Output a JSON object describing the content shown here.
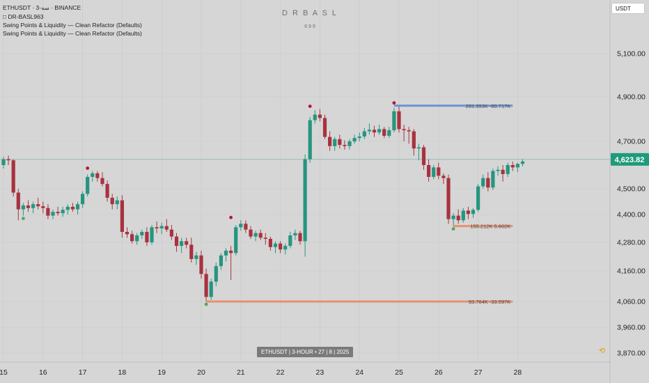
{
  "header": {
    "symbol_line": "ETHUSDT · 3-سه · BINANCE",
    "indicator_lines": [
      "□ DR-BASL963",
      "Swing Points & Liquidity — Clean Refactor (Defaults)",
      "Swing Points & Liquidity — Clean Refactor (Defaults)"
    ]
  },
  "watermark": {
    "title": "D R B A S L",
    "subtitle": "6 9 9"
  },
  "currency_button": "USDT",
  "bottom_label": "ETHUSDT  |  3-HOUR  •  27 | 8 | 2025",
  "logo_glyph": "⟲",
  "colors": {
    "bull": "#26957f",
    "bear": "#a8323f",
    "high_line": "#6b93d3",
    "low_line": "#e8906c",
    "price_label": "#1f9a7a",
    "swing_high": "#b8143a",
    "swing_low": "#58a65a",
    "grid": "#c9c9c9",
    "price_line": "#7fb4ac"
  },
  "chart_data": {
    "type": "candlestick",
    "x_ticks": [
      {
        "label": "15",
        "x": 0
      },
      {
        "label": "16",
        "x": 8
      },
      {
        "label": "17",
        "x": 16
      },
      {
        "label": "18",
        "x": 24
      },
      {
        "label": "19",
        "x": 32
      },
      {
        "label": "20",
        "x": 40
      },
      {
        "label": "21",
        "x": 48
      },
      {
        "label": "22",
        "x": 56
      },
      {
        "label": "23",
        "x": 64
      },
      {
        "label": "24",
        "x": 72
      },
      {
        "label": "25",
        "x": 80
      },
      {
        "label": "26",
        "x": 88
      },
      {
        "label": "27",
        "x": 96
      },
      {
        "label": "28",
        "x": 104
      }
    ],
    "y_ticks": [
      5100,
      4900,
      4700,
      4500,
      4400,
      4280,
      4160,
      4060,
      3960,
      3870
    ],
    "y_tick_labels": [
      "5,100.00",
      "4,900.00",
      "4,700.00",
      "4,500.00",
      "4,400.00",
      "4,280.00",
      "4,160.00",
      "4,060.00",
      "3,960.00",
      "3,870.00"
    ],
    "last_price": 4623.82,
    "last_price_label": "4,623.82",
    "candles": [
      {
        "o": 4600,
        "h": 4635,
        "l": 4585,
        "c": 4625
      },
      {
        "o": 4625,
        "h": 4640,
        "l": 4600,
        "c": 4620
      },
      {
        "o": 4620,
        "h": 4625,
        "l": 4470,
        "c": 4485
      },
      {
        "o": 4485,
        "h": 4500,
        "l": 4375,
        "c": 4420
      },
      {
        "o": 4420,
        "h": 4445,
        "l": 4395,
        "c": 4435
      },
      {
        "o": 4435,
        "h": 4455,
        "l": 4410,
        "c": 4425
      },
      {
        "o": 4425,
        "h": 4450,
        "l": 4405,
        "c": 4440
      },
      {
        "o": 4440,
        "h": 4465,
        "l": 4420,
        "c": 4432
      },
      {
        "o": 4432,
        "h": 4450,
        "l": 4405,
        "c": 4425
      },
      {
        "o": 4425,
        "h": 4440,
        "l": 4380,
        "c": 4395
      },
      {
        "o": 4395,
        "h": 4420,
        "l": 4380,
        "c": 4410
      },
      {
        "o": 4410,
        "h": 4430,
        "l": 4395,
        "c": 4405
      },
      {
        "o": 4405,
        "h": 4430,
        "l": 4390,
        "c": 4418
      },
      {
        "o": 4418,
        "h": 4440,
        "l": 4400,
        "c": 4430
      },
      {
        "o": 4430,
        "h": 4445,
        "l": 4410,
        "c": 4420
      },
      {
        "o": 4420,
        "h": 4450,
        "l": 4400,
        "c": 4440
      },
      {
        "o": 4440,
        "h": 4490,
        "l": 4425,
        "c": 4480
      },
      {
        "o": 4480,
        "h": 4560,
        "l": 4470,
        "c": 4550
      },
      {
        "o": 4550,
        "h": 4575,
        "l": 4530,
        "c": 4565
      },
      {
        "o": 4565,
        "h": 4575,
        "l": 4530,
        "c": 4545
      },
      {
        "o": 4545,
        "h": 4570,
        "l": 4510,
        "c": 4520
      },
      {
        "o": 4520,
        "h": 4535,
        "l": 4450,
        "c": 4465
      },
      {
        "o": 4465,
        "h": 4480,
        "l": 4420,
        "c": 4440
      },
      {
        "o": 4440,
        "h": 4470,
        "l": 4420,
        "c": 4455
      },
      {
        "o": 4455,
        "h": 4475,
        "l": 4300,
        "c": 4325
      },
      {
        "o": 4325,
        "h": 4345,
        "l": 4300,
        "c": 4315
      },
      {
        "o": 4315,
        "h": 4330,
        "l": 4275,
        "c": 4285
      },
      {
        "o": 4285,
        "h": 4320,
        "l": 4270,
        "c": 4310
      },
      {
        "o": 4310,
        "h": 4335,
        "l": 4295,
        "c": 4325
      },
      {
        "o": 4325,
        "h": 4345,
        "l": 4265,
        "c": 4280
      },
      {
        "o": 4280,
        "h": 4355,
        "l": 4270,
        "c": 4345
      },
      {
        "o": 4345,
        "h": 4370,
        "l": 4320,
        "c": 4340
      },
      {
        "o": 4340,
        "h": 4365,
        "l": 4315,
        "c": 4350
      },
      {
        "o": 4350,
        "h": 4380,
        "l": 4325,
        "c": 4335
      },
      {
        "o": 4335,
        "h": 4355,
        "l": 4290,
        "c": 4305
      },
      {
        "o": 4305,
        "h": 4320,
        "l": 4240,
        "c": 4265
      },
      {
        "o": 4265,
        "h": 4300,
        "l": 4235,
        "c": 4285
      },
      {
        "o": 4285,
        "h": 4300,
        "l": 4255,
        "c": 4270
      },
      {
        "o": 4270,
        "h": 4300,
        "l": 4195,
        "c": 4210
      },
      {
        "o": 4210,
        "h": 4240,
        "l": 4185,
        "c": 4225
      },
      {
        "o": 4225,
        "h": 4245,
        "l": 4135,
        "c": 4150
      },
      {
        "o": 4150,
        "h": 4170,
        "l": 4060,
        "c": 4075
      },
      {
        "o": 4075,
        "h": 4135,
        "l": 4065,
        "c": 4125
      },
      {
        "o": 4125,
        "h": 4195,
        "l": 4110,
        "c": 4180
      },
      {
        "o": 4180,
        "h": 4235,
        "l": 4165,
        "c": 4225
      },
      {
        "o": 4225,
        "h": 4255,
        "l": 4200,
        "c": 4245
      },
      {
        "o": 4245,
        "h": 4265,
        "l": 4130,
        "c": 4235
      },
      {
        "o": 4235,
        "h": 4355,
        "l": 4225,
        "c": 4345
      },
      {
        "o": 4345,
        "h": 4375,
        "l": 4330,
        "c": 4360
      },
      {
        "o": 4360,
        "h": 4375,
        "l": 4320,
        "c": 4335
      },
      {
        "o": 4335,
        "h": 4350,
        "l": 4295,
        "c": 4305
      },
      {
        "o": 4305,
        "h": 4330,
        "l": 4285,
        "c": 4320
      },
      {
        "o": 4320,
        "h": 4335,
        "l": 4290,
        "c": 4300
      },
      {
        "o": 4300,
        "h": 4320,
        "l": 4270,
        "c": 4295
      },
      {
        "o": 4295,
        "h": 4305,
        "l": 4245,
        "c": 4260
      },
      {
        "o": 4260,
        "h": 4285,
        "l": 4235,
        "c": 4275
      },
      {
        "o": 4275,
        "h": 4285,
        "l": 4235,
        "c": 4250
      },
      {
        "o": 4250,
        "h": 4275,
        "l": 4230,
        "c": 4265
      },
      {
        "o": 4265,
        "h": 4325,
        "l": 4255,
        "c": 4310
      },
      {
        "o": 4310,
        "h": 4335,
        "l": 4290,
        "c": 4320
      },
      {
        "o": 4320,
        "h": 4330,
        "l": 4270,
        "c": 4285
      },
      {
        "o": 4285,
        "h": 4645,
        "l": 4220,
        "c": 4625
      },
      {
        "o": 4625,
        "h": 4810,
        "l": 4610,
        "c": 4795
      },
      {
        "o": 4795,
        "h": 4840,
        "l": 4780,
        "c": 4820
      },
      {
        "o": 4820,
        "h": 4845,
        "l": 4790,
        "c": 4805
      },
      {
        "o": 4805,
        "h": 4820,
        "l": 4710,
        "c": 4720
      },
      {
        "o": 4720,
        "h": 4745,
        "l": 4660,
        "c": 4680
      },
      {
        "o": 4680,
        "h": 4720,
        "l": 4660,
        "c": 4710
      },
      {
        "o": 4710,
        "h": 4730,
        "l": 4670,
        "c": 4685
      },
      {
        "o": 4685,
        "h": 4705,
        "l": 4665,
        "c": 4680
      },
      {
        "o": 4680,
        "h": 4710,
        "l": 4665,
        "c": 4700
      },
      {
        "o": 4700,
        "h": 4730,
        "l": 4690,
        "c": 4715
      },
      {
        "o": 4715,
        "h": 4740,
        "l": 4700,
        "c": 4722
      },
      {
        "o": 4722,
        "h": 4760,
        "l": 4710,
        "c": 4745
      },
      {
        "o": 4745,
        "h": 4780,
        "l": 4730,
        "c": 4752
      },
      {
        "o": 4752,
        "h": 4770,
        "l": 4720,
        "c": 4740
      },
      {
        "o": 4740,
        "h": 4775,
        "l": 4730,
        "c": 4755
      },
      {
        "o": 4755,
        "h": 4765,
        "l": 4715,
        "c": 4725
      },
      {
        "o": 4725,
        "h": 4765,
        "l": 4715,
        "c": 4750
      },
      {
        "o": 4750,
        "h": 4850,
        "l": 4740,
        "c": 4835
      },
      {
        "o": 4835,
        "h": 4860,
        "l": 4740,
        "c": 4755
      },
      {
        "o": 4755,
        "h": 4775,
        "l": 4700,
        "c": 4750
      },
      {
        "o": 4750,
        "h": 4765,
        "l": 4690,
        "c": 4745
      },
      {
        "o": 4745,
        "h": 4755,
        "l": 4640,
        "c": 4670
      },
      {
        "o": 4670,
        "h": 4690,
        "l": 4620,
        "c": 4675
      },
      {
        "o": 4675,
        "h": 4685,
        "l": 4580,
        "c": 4600
      },
      {
        "o": 4600,
        "h": 4625,
        "l": 4530,
        "c": 4550
      },
      {
        "o": 4550,
        "h": 4600,
        "l": 4540,
        "c": 4590
      },
      {
        "o": 4590,
        "h": 4610,
        "l": 4540,
        "c": 4555
      },
      {
        "o": 4555,
        "h": 4565,
        "l": 4520,
        "c": 4545
      },
      {
        "o": 4545,
        "h": 4560,
        "l": 4360,
        "c": 4380
      },
      {
        "o": 4380,
        "h": 4405,
        "l": 4350,
        "c": 4395
      },
      {
        "o": 4395,
        "h": 4420,
        "l": 4360,
        "c": 4375
      },
      {
        "o": 4375,
        "h": 4425,
        "l": 4365,
        "c": 4415
      },
      {
        "o": 4415,
        "h": 4430,
        "l": 4380,
        "c": 4402
      },
      {
        "o": 4402,
        "h": 4425,
        "l": 4385,
        "c": 4418
      },
      {
        "o": 4418,
        "h": 4520,
        "l": 4410,
        "c": 4510
      },
      {
        "o": 4510,
        "h": 4560,
        "l": 4500,
        "c": 4545
      },
      {
        "o": 4545,
        "h": 4570,
        "l": 4490,
        "c": 4505
      },
      {
        "o": 4505,
        "h": 4585,
        "l": 4495,
        "c": 4575
      },
      {
        "o": 4575,
        "h": 4595,
        "l": 4555,
        "c": 4580
      },
      {
        "o": 4580,
        "h": 4600,
        "l": 4530,
        "c": 4562
      },
      {
        "o": 4562,
        "h": 4610,
        "l": 4550,
        "c": 4600
      },
      {
        "o": 4600,
        "h": 4615,
        "l": 4575,
        "c": 4590
      },
      {
        "o": 4590,
        "h": 4610,
        "l": 4570,
        "c": 4605
      },
      {
        "o": 4605,
        "h": 4625,
        "l": 4595,
        "c": 4615
      }
    ],
    "swing_highs": [
      {
        "i": 17,
        "v": 4575
      },
      {
        "i": 46,
        "v": 4375
      },
      {
        "i": 62,
        "v": 4845
      },
      {
        "i": 79,
        "v": 4860
      }
    ],
    "swing_lows": [
      {
        "i": 4,
        "v": 4395
      },
      {
        "i": 41,
        "v": 4060
      },
      {
        "i": 91,
        "v": 4350
      }
    ],
    "liquidity_levels": [
      {
        "kind": "high",
        "price": 4860,
        "from": 79,
        "to": 103,
        "label": "281.393K -80.717K"
      },
      {
        "kind": "low",
        "price": 4350,
        "from": 91,
        "to": 103,
        "label": "155.212K 5.602K"
      },
      {
        "kind": "low",
        "price": 4060,
        "from": 41,
        "to": 103,
        "label": "93.764K -33.597K"
      }
    ]
  }
}
